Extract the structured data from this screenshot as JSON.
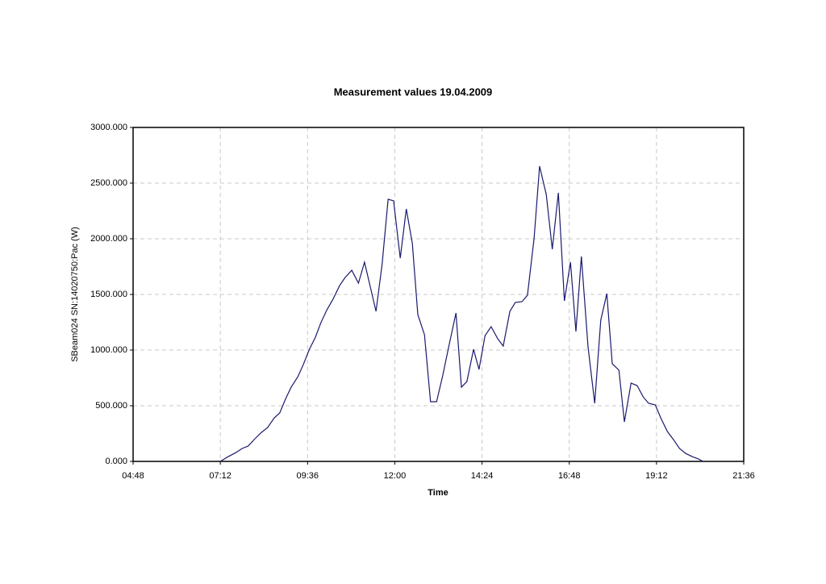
{
  "chart_data": {
    "type": "line",
    "title": "Measurement values 19.04.2009",
    "x_label": "Time",
    "y_label": "SBeam024 SN:14020750:Pac (W)",
    "xlim": [
      288,
      1296
    ],
    "xticks": [
      {
        "value": 288,
        "label": "04:48"
      },
      {
        "value": 432,
        "label": "07:12"
      },
      {
        "value": 576,
        "label": "09:36"
      },
      {
        "value": 720,
        "label": "12:00"
      },
      {
        "value": 864,
        "label": "14:24"
      },
      {
        "value": 1008,
        "label": "16:48"
      },
      {
        "value": 1152,
        "label": "19:12"
      },
      {
        "value": 1296,
        "label": "21:36"
      }
    ],
    "ylim": [
      0,
      3000
    ],
    "yticks": [
      {
        "value": 0,
        "label": "0.000"
      },
      {
        "value": 500,
        "label": "500.000"
      },
      {
        "value": 1000,
        "label": "1000.000"
      },
      {
        "value": 1500,
        "label": "1500.000"
      },
      {
        "value": 2000,
        "label": "2000.000"
      },
      {
        "value": 2500,
        "label": "2500.000"
      },
      {
        "value": 3000,
        "label": "3000.000"
      }
    ],
    "grid": true,
    "x": [
      432,
      445,
      458,
      468,
      478,
      489,
      500,
      510,
      521,
      530,
      540,
      549,
      560,
      569,
      579,
      589,
      598,
      608,
      618,
      629,
      638,
      649,
      660,
      670,
      680,
      689,
      699,
      709,
      718,
      729,
      739,
      749,
      758,
      769,
      779,
      789,
      799,
      809,
      821,
      830,
      839,
      850,
      859,
      869,
      879,
      890,
      899,
      910,
      919,
      930,
      939,
      950,
      959,
      970,
      980,
      990,
      1000,
      1010,
      1019,
      1028,
      1039,
      1050,
      1060,
      1070,
      1079,
      1090,
      1099,
      1110,
      1120,
      1130,
      1139,
      1150,
      1159,
      1170,
      1180,
      1190,
      1200,
      1211,
      1221,
      1229
    ],
    "series": [
      {
        "name": "SBeam024 SN:14020750:Pac (W)",
        "color": "#1a1a6e",
        "values": [
          0,
          43,
          80,
          116,
          138,
          203,
          261,
          304,
          391,
          435,
          565,
          667,
          761,
          870,
          1007,
          1116,
          1246,
          1362,
          1457,
          1580,
          1652,
          1717,
          1601,
          1790,
          1558,
          1348,
          1768,
          2355,
          2341,
          1826,
          2268,
          1957,
          1319,
          1138,
          536,
          536,
          768,
          1029,
          1333,
          667,
          717,
          1007,
          826,
          1130,
          1210,
          1101,
          1036,
          1348,
          1428,
          1435,
          1493,
          2007,
          2652,
          2399,
          1906,
          2413,
          1442,
          1790,
          1167,
          1841,
          1029,
          522,
          1268,
          1507,
          877,
          819,
          355,
          703,
          681,
          580,
          522,
          507,
          391,
          268,
          196,
          116,
          72,
          43,
          22,
          0
        ]
      }
    ]
  }
}
